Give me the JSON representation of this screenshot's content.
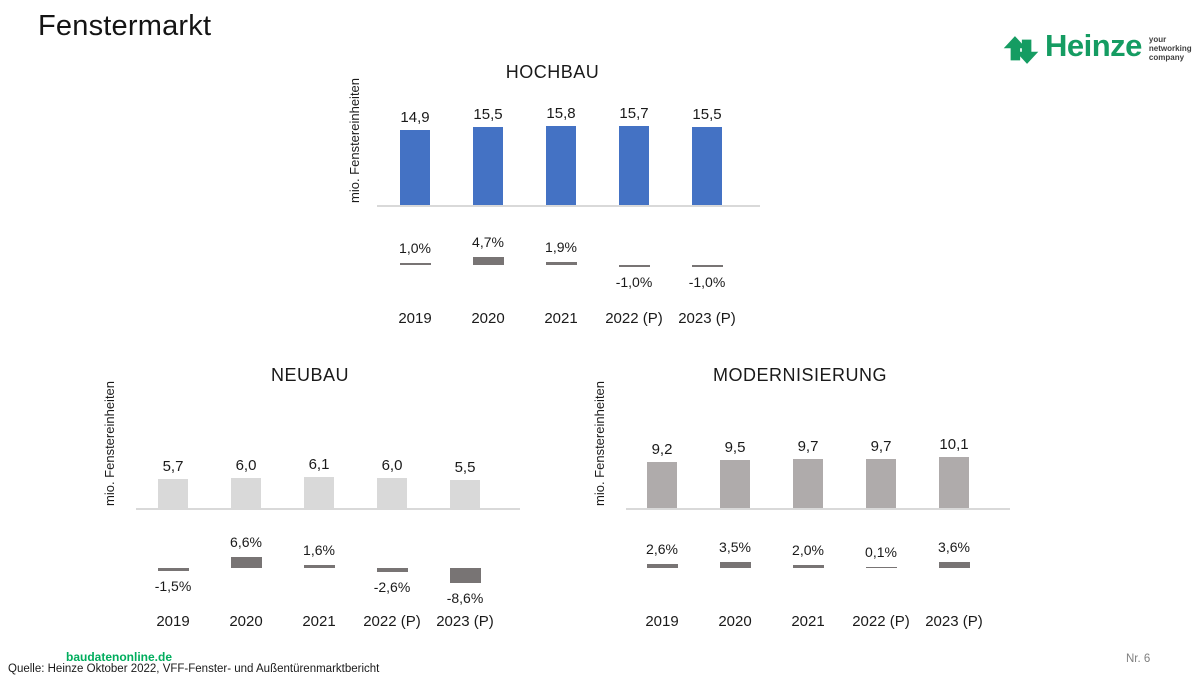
{
  "page": {
    "title": "Fenstermarkt",
    "footer_link": "baudatenonline.de",
    "source": "Quelle: Heinze Oktober 2022, VFF-Fenster- und Außentürenmarktbericht",
    "page_number": "Nr. 6"
  },
  "logo": {
    "brand": "Heinze",
    "tagline": [
      "your",
      "networking",
      "company"
    ],
    "green": "#159C62"
  },
  "colors": {
    "hochbau_bar": "#4472C4",
    "neubau_bar": "#D9D9D9",
    "modernisierung_bar": "#AFABAB",
    "pct_bar": "#787474",
    "axis_line": "#D9D9D9",
    "link_green": "#00AD5D",
    "page_number_gray": "#808080"
  },
  "chart_data": [
    {
      "type": "bar",
      "title": "HOCHBAU",
      "ylabel": "mio. Fenstereinheiten",
      "categories": [
        "2019",
        "2020",
        "2021",
        "2022 (P)",
        "2023 (P)"
      ],
      "units": {
        "values": [
          14.9,
          15.5,
          15.8,
          15.7,
          15.5
        ],
        "labels": [
          "14,9",
          "15,5",
          "15,8",
          "15,7",
          "15,5"
        ]
      },
      "change_percent": {
        "values": [
          1.0,
          4.7,
          1.9,
          -1.0,
          -1.0
        ],
        "labels": [
          "1,0%",
          "4,7%",
          "1,9%",
          "-1,0%",
          "-1,0%"
        ]
      },
      "bar_color": "#4472C4",
      "ylim": [
        0,
        16
      ],
      "grid": false,
      "legend": false
    },
    {
      "type": "bar",
      "title": "NEUBAU",
      "ylabel": "mio. Fenstereinheiten",
      "categories": [
        "2019",
        "2020",
        "2021",
        "2022 (P)",
        "2023 (P)"
      ],
      "units": {
        "values": [
          5.7,
          6.0,
          6.1,
          6.0,
          5.5
        ],
        "labels": [
          "5,7",
          "6,0",
          "6,1",
          "6,0",
          "5,5"
        ]
      },
      "change_percent": {
        "values": [
          -1.5,
          6.6,
          1.6,
          -2.6,
          -8.6
        ],
        "labels": [
          "-1,5%",
          "6,6%",
          "1,6%",
          "-2,6%",
          "-8,6%"
        ]
      },
      "bar_color": "#D9D9D9",
      "ylim": [
        0,
        16
      ],
      "grid": false,
      "legend": false
    },
    {
      "type": "bar",
      "title": "MODERNISIERUNG",
      "ylabel": "mio. Fenstereinheiten",
      "categories": [
        "2019",
        "2020",
        "2021",
        "2022 (P)",
        "2023 (P)"
      ],
      "units": {
        "values": [
          9.2,
          9.5,
          9.7,
          9.7,
          10.1
        ],
        "labels": [
          "9,2",
          "9,5",
          "9,7",
          "9,7",
          "10,1"
        ]
      },
      "change_percent": {
        "values": [
          2.6,
          3.5,
          2.0,
          0.1,
          3.6
        ],
        "labels": [
          "2,6%",
          "3,5%",
          "2,0%",
          "0,1%",
          "3,6%"
        ]
      },
      "bar_color": "#AFABAB",
      "ylim": [
        0,
        16
      ],
      "grid": false,
      "legend": false
    }
  ]
}
